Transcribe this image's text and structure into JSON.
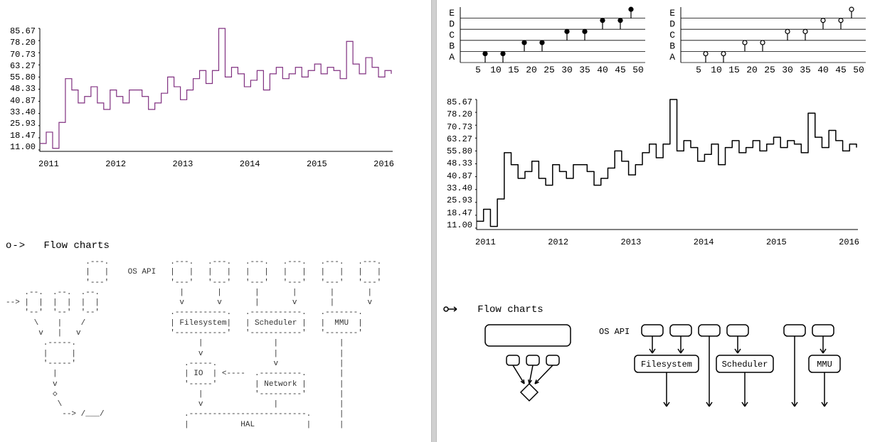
{
  "left": {
    "line_chart": {
      "type": "step-line",
      "stroke": "#803080",
      "stroke_width": 1.2,
      "background": "#ffffff",
      "axis_color": "#000000",
      "y_ticks": [
        "85.67",
        "78.20",
        "70.73",
        "63.27",
        "55.80",
        "48.33",
        "40.87",
        "33.40",
        "25.93",
        "18.47",
        "11.00"
      ],
      "x_ticks": [
        "2011",
        "2012",
        "2013",
        "2014",
        "2015",
        "2016"
      ],
      "ymin": 11,
      "ymax": 86,
      "series": [
        15,
        22,
        12,
        28,
        55,
        48,
        40,
        44,
        50,
        40,
        36,
        48,
        44,
        40,
        48,
        48,
        44,
        36,
        40,
        46,
        56,
        50,
        42,
        48,
        55,
        60,
        52,
        60,
        86,
        56,
        62,
        58,
        50,
        54,
        60,
        48,
        58,
        62,
        55,
        58,
        62,
        56,
        60,
        64,
        58,
        62,
        60,
        55,
        78,
        64,
        58,
        68,
        62,
        56,
        60,
        58
      ]
    },
    "section_title_prefix": "o->",
    "section_title": "Flow charts",
    "ascii_flow_left": "                 .---.\n                 |   |    OS API\n                 '---'\n    .--.  .--.  .--.\n--> |  |  |  |  |  |\n    '--'  '--'  '--'\n      \\    |    /\n       v   |   v\n        .-----.\n        |     |\n        '-----'\n          | \n          v\n          ◇\n           \\\n            --> /___/",
    "ascii_flow_right": ".---.   .---.   .---.   .---.   .---.   .---.\n|   |   |   |   |   |   |   |   |   |   |   |\n'---'   '---'   '---'   '---'   '---'   '---'\n  |       |       |       |       |       |\n  v       v       |       v       |       v\n.-----------.   .-----------.   .-------.\n| Filesystem|   | Scheduler |   |  MMU  |\n'-----------'   '-----------'   '-------'\n      |               |             |\n      v               |             |\n   .-----.            v             |\n   | IO  | <----  .---------.       |\n   '-----'        | Network |       |\n      |           '---------'       |\n      v               |             |\n   .-------------------------.      |\n   |           HAL           |      |"
  },
  "right": {
    "lollipop1": {
      "type": "lollipop",
      "marker": "filled",
      "stroke": "#000000",
      "marker_fill": "#000000",
      "y_categories": [
        "E",
        "D",
        "C",
        "B",
        "A"
      ],
      "x_ticks": [
        5,
        10,
        15,
        20,
        25,
        30,
        35,
        40,
        45,
        50
      ],
      "xmin": 0,
      "xmax": 52,
      "data": [
        {
          "cat": "A",
          "x": 7
        },
        {
          "cat": "A",
          "x": 12
        },
        {
          "cat": "B",
          "x": 18
        },
        {
          "cat": "B",
          "x": 23
        },
        {
          "cat": "C",
          "x": 30
        },
        {
          "cat": "C",
          "x": 35
        },
        {
          "cat": "D",
          "x": 40
        },
        {
          "cat": "D",
          "x": 45
        },
        {
          "cat": "E",
          "x": 48
        }
      ]
    },
    "lollipop2": {
      "type": "lollipop",
      "marker": "open",
      "stroke": "#000000",
      "marker_fill": "#ffffff",
      "y_categories": [
        "E",
        "D",
        "C",
        "B",
        "A"
      ],
      "x_ticks": [
        5,
        10,
        15,
        20,
        25,
        30,
        35,
        40,
        45,
        50
      ],
      "xmin": 0,
      "xmax": 52,
      "data": [
        {
          "cat": "A",
          "x": 7
        },
        {
          "cat": "A",
          "x": 12
        },
        {
          "cat": "B",
          "x": 18
        },
        {
          "cat": "B",
          "x": 23
        },
        {
          "cat": "C",
          "x": 30
        },
        {
          "cat": "C",
          "x": 35
        },
        {
          "cat": "D",
          "x": 40
        },
        {
          "cat": "D",
          "x": 45
        },
        {
          "cat": "E",
          "x": 48
        }
      ]
    },
    "line_chart": {
      "type": "step-line-rounded",
      "stroke": "#000000",
      "stroke_width": 1.5,
      "background": "#ffffff",
      "axis_color": "#000000",
      "y_ticks": [
        "85.67",
        "78.20",
        "70.73",
        "63.27",
        "55.80",
        "48.33",
        "40.87",
        "33.40",
        "25.93",
        "18.47",
        "11.00"
      ],
      "x_ticks": [
        "2011",
        "2012",
        "2013",
        "2014",
        "2015",
        "2016"
      ],
      "ymin": 11,
      "ymax": 86,
      "series": [
        15,
        22,
        12,
        28,
        55,
        48,
        40,
        44,
        50,
        40,
        36,
        48,
        44,
        40,
        48,
        48,
        44,
        36,
        40,
        46,
        56,
        50,
        42,
        48,
        55,
        60,
        52,
        60,
        86,
        56,
        62,
        58,
        50,
        54,
        60,
        48,
        58,
        62,
        55,
        58,
        62,
        56,
        60,
        64,
        58,
        62,
        60,
        55,
        78,
        64,
        58,
        68,
        62,
        56,
        60,
        58
      ]
    },
    "section_title_prefix": "o→",
    "section_title": "Flow  charts",
    "os_api_label": "OS API",
    "flow_boxes": {
      "filesystem": "Filesystem",
      "scheduler": "Scheduler",
      "mmu": "MMU"
    }
  }
}
